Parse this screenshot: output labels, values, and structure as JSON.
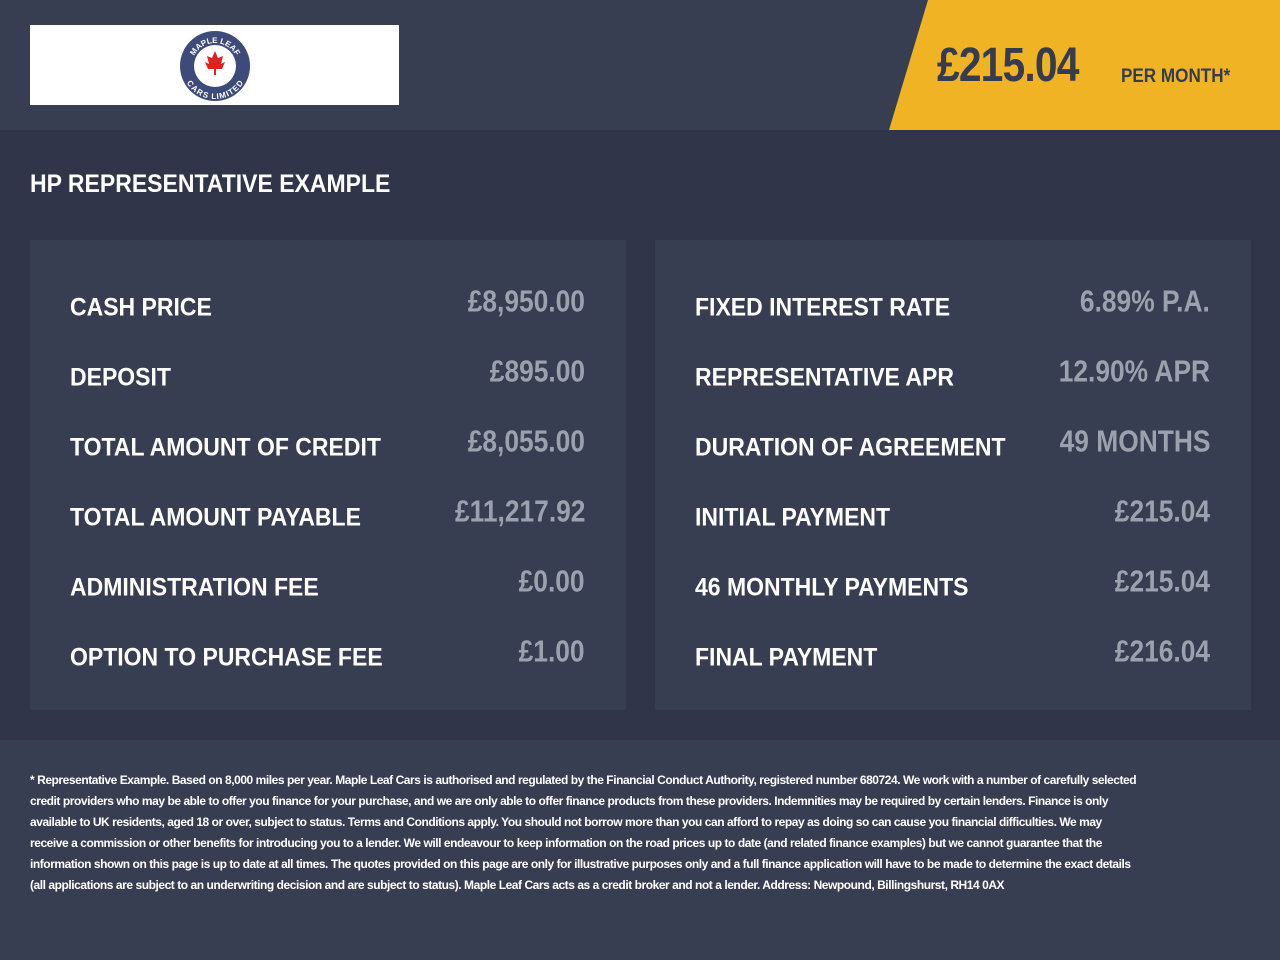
{
  "header": {
    "logo_top": "MAPLE LEAF",
    "logo_bottom": "CARS LIMITED",
    "price": "£215.04",
    "price_suffix": "PER MONTH*"
  },
  "section_title": "HP REPRESENTATIVE EXAMPLE",
  "left_table": {
    "rows": [
      [
        "CASH PRICE",
        "£8,950.00"
      ],
      [
        "DEPOSIT",
        "£895.00"
      ],
      [
        "TOTAL AMOUNT OF CREDIT",
        "£8,055.00"
      ],
      [
        "TOTAL AMOUNT PAYABLE",
        "£11,217.92"
      ],
      [
        "ADMINISTRATION FEE",
        "£0.00"
      ],
      [
        "OPTION TO PURCHASE FEE",
        "£1.00"
      ]
    ]
  },
  "right_table": {
    "rows": [
      [
        "FIXED INTEREST RATE",
        "6.89% P.A."
      ],
      [
        "REPRESENTATIVE APR",
        "12.90% APR"
      ],
      [
        "DURATION OF AGREEMENT",
        "49 MONTHS"
      ],
      [
        "INITIAL PAYMENT",
        "£215.04"
      ],
      [
        "46 MONTHLY PAYMENTS",
        "£215.04"
      ],
      [
        "FINAL PAYMENT",
        "£216.04"
      ]
    ]
  },
  "disclaimer": "* Representative Example. Based on 8,000 miles per year. Maple Leaf Cars is authorised and regulated by the Financial Conduct Authority, registered number 680724. We work with a number of carefully selected credit providers who may be able to offer you finance for your purchase, and we are only able to offer finance products from these providers. Indemnities may be required by certain lenders. Finance is only available to UK residents, aged 18 or over, subject to status. Terms and Conditions apply. You should not borrow more than you can afford to repay as doing so can cause you financial difficulties. We may receive a commission or other benefits for introducing you to a lender. We will endeavour to keep information on the road prices up to date (and related finance examples) but we cannot guarantee that the information shown on this page is up to date at all times. The quotes provided on this page are only for illustrative purposes only and a full finance application will have to be made to determine the exact details (all applications are subject to an underwriting decision and are subject to status). Maple Leaf Cars acts as a credit broker and not a lender. Address: Newpound, Billingshurst, RH14 0AX"
}
